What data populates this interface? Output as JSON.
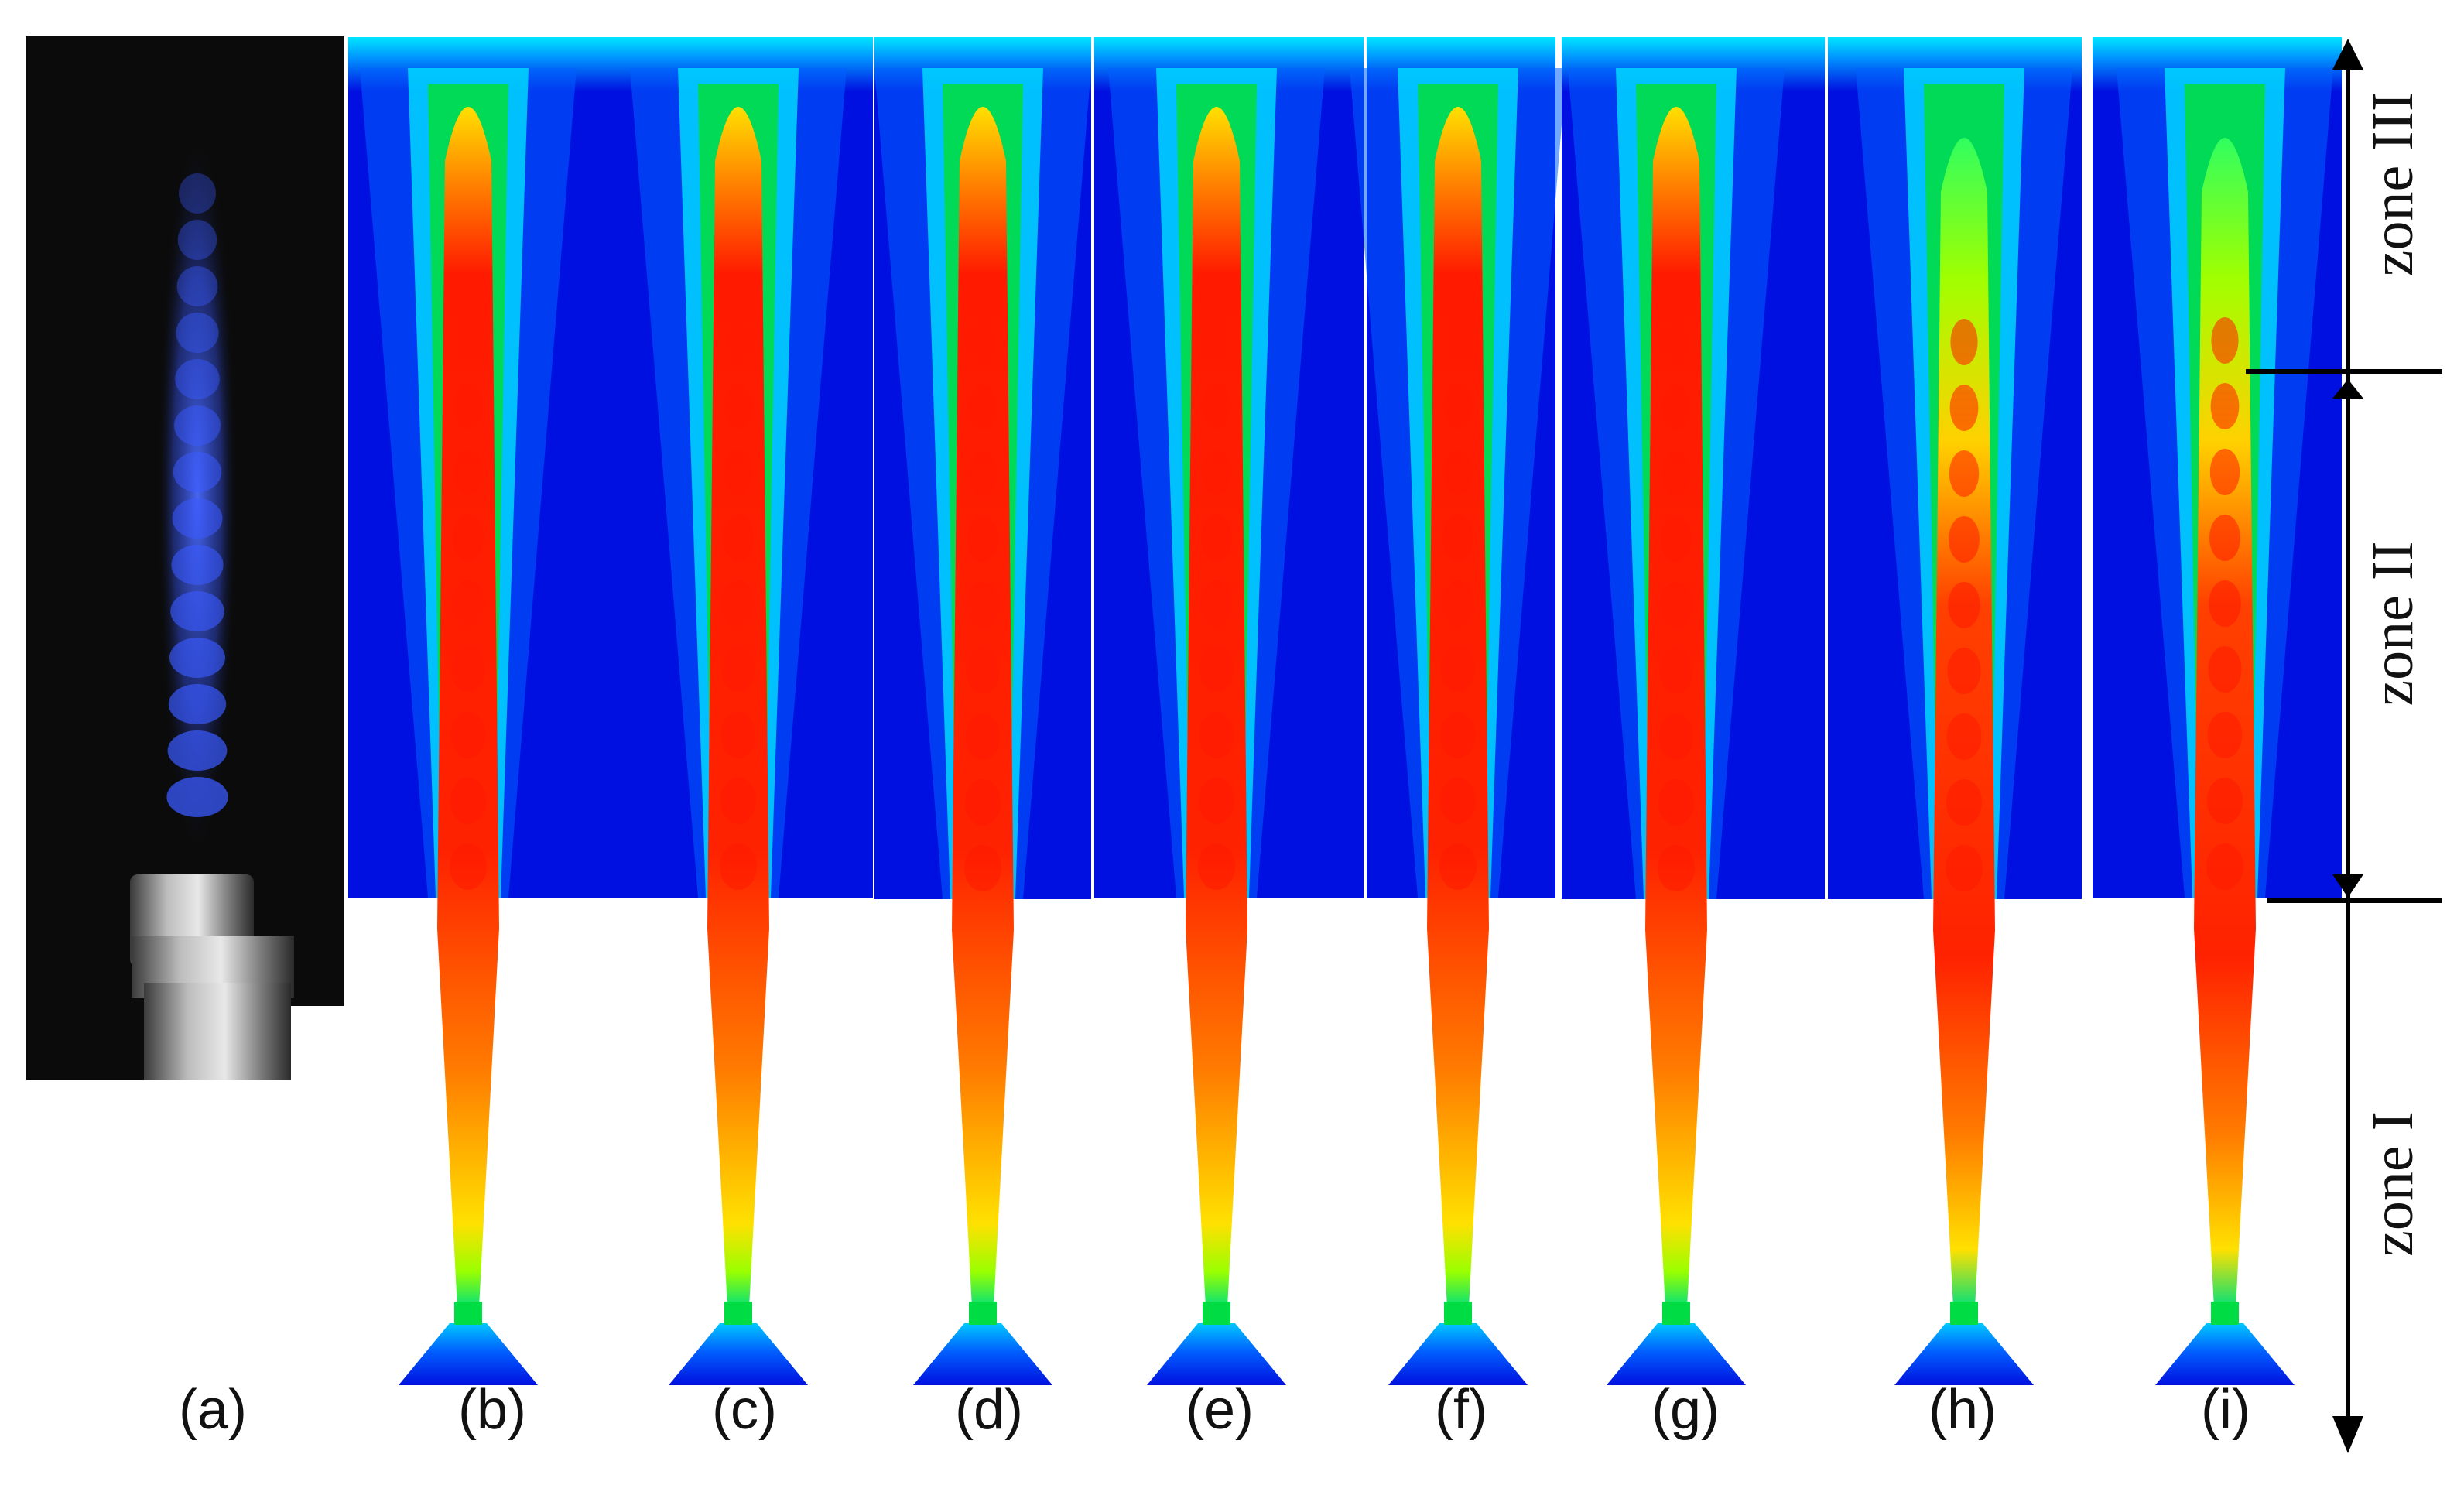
{
  "figure": {
    "panel_labels": [
      "(a)",
      "(b)",
      "(c)",
      "(d)",
      "(e)",
      "(f)",
      "(g)",
      "(h)",
      "(i)"
    ],
    "zone_labels": {
      "zone_3": "zone III",
      "zone_2": "zone II",
      "zone_1": "zone I"
    },
    "colors": {
      "background_field": "#0010e0",
      "jet_core": "#ff1a00",
      "jet_mid": "#ffdd00",
      "jet_edge": "#00dd44",
      "photo_background": "#0b0b0b",
      "photo_flame": "#3a5aff"
    }
  }
}
